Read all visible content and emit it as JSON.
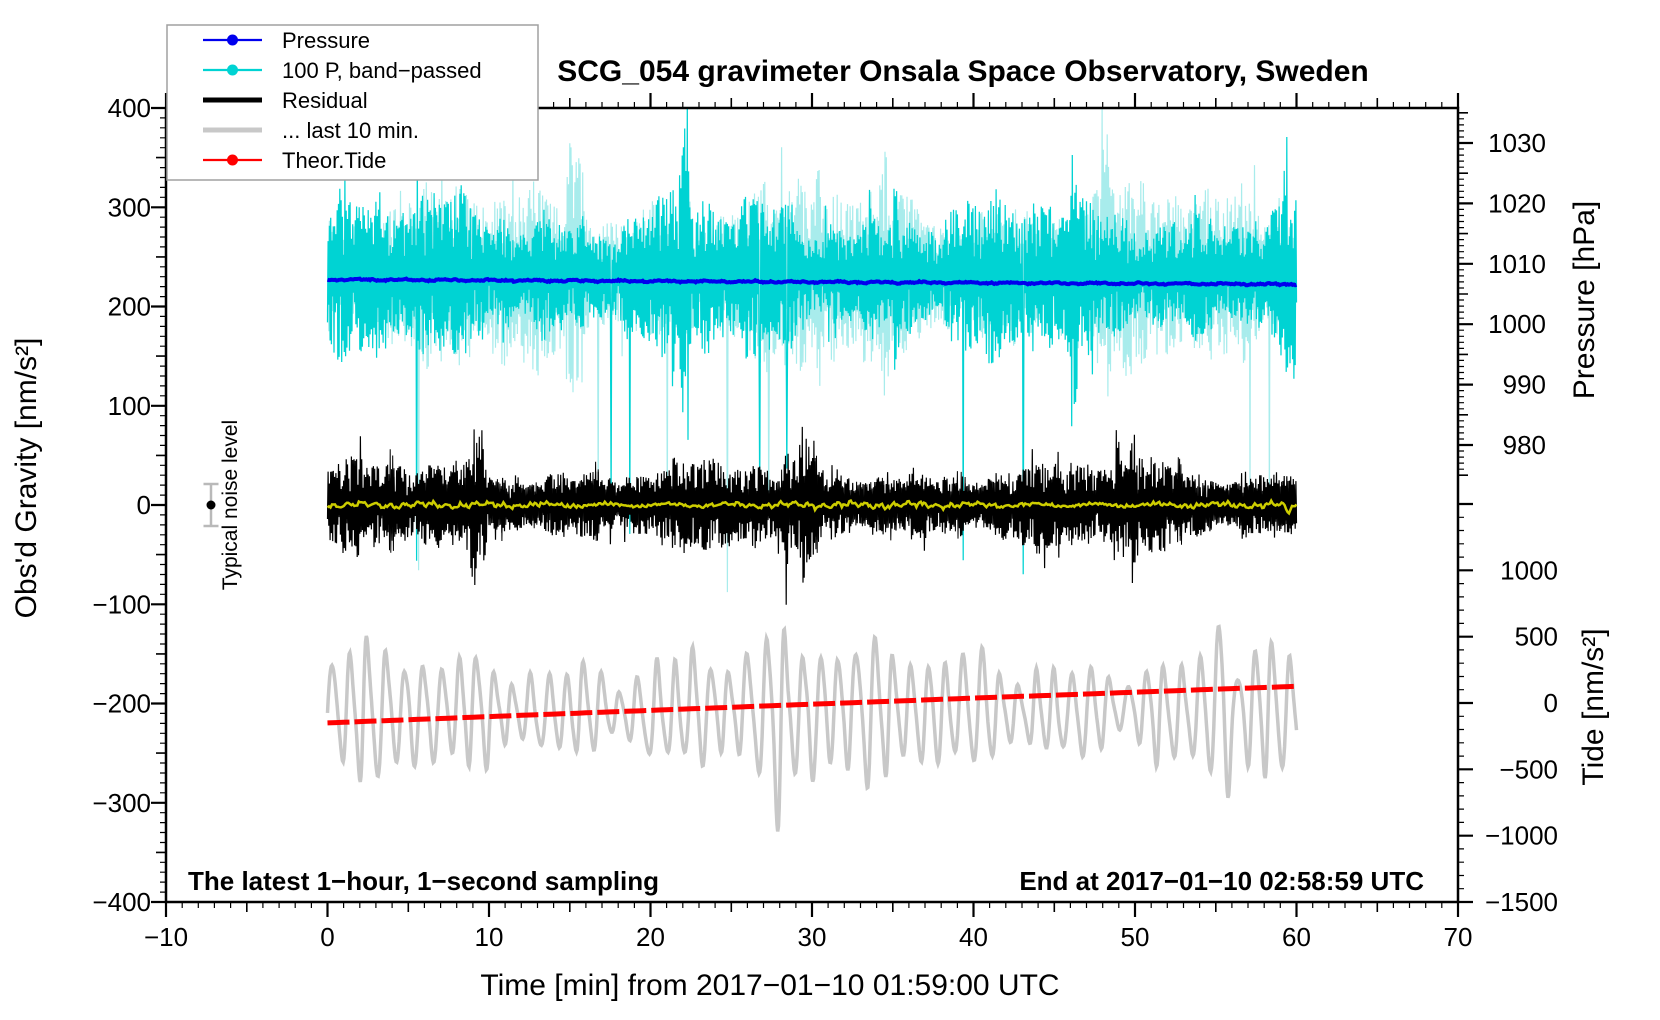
{
  "title": "SCG_054 gravimeter Onsala Space Observatory, Sweden",
  "annotations": {
    "sampling_note": "The latest 1−hour, 1−second sampling",
    "end_time_note": "End at 2017−01−10 02:58:59 UTC",
    "noise_label": "Typical noise level"
  },
  "legend": {
    "items": [
      {
        "label": "Pressure",
        "series": "pressure",
        "sample": "dot-line"
      },
      {
        "label": "100 P, band−passed",
        "series": "pressure-band-passed",
        "sample": "dot-line"
      },
      {
        "label": "Residual",
        "series": "residual",
        "sample": "thick-line"
      },
      {
        "label": "... last 10 min.",
        "series": "residual-last-10-min",
        "sample": "thick-line"
      },
      {
        "label": "Theor.Tide",
        "series": "theoretical-tide",
        "sample": "dot-line"
      }
    ]
  },
  "chart_data": {
    "type": "line",
    "title": "SCG_054 gravimeter Onsala Space Observatory, Sweden",
    "x_axis": {
      "label": "Time [min] from 2017−01−10 01:59:00 UTC",
      "min": -10,
      "max": 70,
      "minor_step": 1,
      "medium_step": 5,
      "major_step": 10,
      "tick_values": [
        -10,
        0,
        10,
        20,
        30,
        40,
        50,
        60,
        70
      ],
      "tick_labels": [
        "−10",
        "0",
        "10",
        "20",
        "30",
        "40",
        "50",
        "60",
        "70"
      ]
    },
    "y_axis_left": {
      "label": "Obs'd Gravity [nm/s²]",
      "min": -400,
      "max": 400,
      "minor_step": 10,
      "medium_step": 50,
      "major_step": 100,
      "tick_values": [
        400,
        300,
        200,
        100,
        0,
        -100,
        -200,
        -300,
        -400
      ],
      "tick_labels": [
        "400",
        "300",
        "200",
        "100",
        "0",
        "−100",
        "−200",
        "−300",
        "−400"
      ]
    },
    "y_axis_right_pressure": {
      "label": "Pressure [hPa]",
      "min": 975,
      "max": 1035,
      "minor_step": 1,
      "medium_step": 5,
      "major_step": 10,
      "tick_values": [
        1030,
        1020,
        1010,
        1000,
        990,
        980
      ],
      "tick_labels": [
        "1030",
        "1020",
        "1010",
        "1000",
        "990",
        "980"
      ]
    },
    "y_axis_right_tide": {
      "label": "Tide [nm/s²]",
      "min": -1500,
      "max": 1500,
      "minor_step": 100,
      "medium_step": null,
      "major_step": 500,
      "tick_values": [
        1000,
        500,
        0,
        -500,
        -1000,
        -1500
      ],
      "tick_labels": [
        "1000",
        "500",
        "0",
        "−500",
        "−1000",
        "−1500"
      ]
    },
    "noise_marker": {
      "label": "Typical noise level",
      "x_min": -7.2,
      "value": 0,
      "error": 21
    },
    "grid": false,
    "legend_position": "top-left",
    "series": [
      {
        "name": "pressure",
        "label": "Pressure",
        "axis": "pressure",
        "style": "noisy-line",
        "color": "#0000ee",
        "width": 4,
        "z": 2,
        "seed": 11,
        "points": 750,
        "x": [
          0,
          60
        ],
        "start_value": 1007.4,
        "end_value": 1006.6,
        "noise": 0.2,
        "unit": "hPa",
        "description": "Barometric pressure, nearly constant ~1007 hPa, slowly decreasing"
      },
      {
        "name": "pressure-band-passed",
        "label": "100 P, band−passed",
        "axis": "gravity",
        "style": "spiky",
        "color": "#00d3d3",
        "color_light": "#a8ecec",
        "width": 1.25,
        "z": 1,
        "seed": 7,
        "points": 1500,
        "x": [
          0,
          60
        ],
        "base": 231,
        "amp_typical": 72,
        "amp_max": 165,
        "rare_down_spike": 300,
        "unit": "nm/s²",
        "description": "Band-passed pressure scaled by 100, high-frequency noise around 230 nm/s²"
      },
      {
        "name": "residual",
        "label": "Residual",
        "axis": "gravity",
        "style": "spiky",
        "color": "#000000",
        "width": 1.2,
        "z": 3,
        "seed": 23,
        "points": 1500,
        "x": [
          0,
          60
        ],
        "base": 0,
        "amp_typical": 40,
        "amp_max": 125,
        "unit": "nm/s²",
        "description": "Gravity residual centered on 0, typical ±45, bursts to ±120 nm/s²"
      },
      {
        "name": "residual-smoothed",
        "label": null,
        "axis": "gravity",
        "style": "wiggle",
        "color": "#cdcd00",
        "width": 2.5,
        "z": 4,
        "seed": 5,
        "points": 650,
        "x": [
          0,
          60
        ],
        "base": 0,
        "amp": 4.5,
        "unit": "nm/s²",
        "description": "Smoothed residual, yellow line hugging 0"
      },
      {
        "name": "residual-last-10-min",
        "label": "... last 10 min.",
        "axis": "tide",
        "style": "oscillation",
        "color": "#c8c8c8",
        "width": 3.5,
        "z": 5,
        "seed": 99,
        "points": 1300,
        "x": [
          0,
          60
        ],
        "base": -60,
        "amp_typical": 380,
        "amp_max": 1150,
        "period_min": 1.12,
        "unit": "nm/s² (tide scale)",
        "description": "Residual of the last 10 minutes, oscillation centered ~-60, excursions to ~-1200"
      },
      {
        "name": "theoretical-tide",
        "label": "Theor.Tide",
        "axis": "tide",
        "style": "trend",
        "color": "#ff0000",
        "width": 5,
        "z": 6,
        "seed": 3,
        "points": 120,
        "x": [
          0,
          60
        ],
        "start_value": -150,
        "end_value": 126,
        "unit": "nm/s²",
        "description": "Theoretical tide rising almost linearly from -150 to ~125 nm/s²"
      }
    ]
  }
}
